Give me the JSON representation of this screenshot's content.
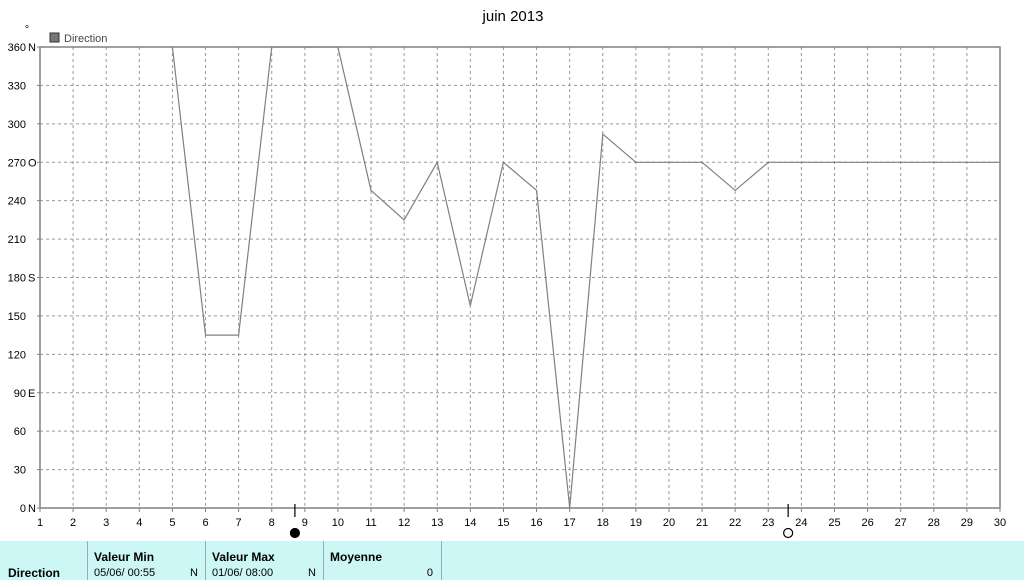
{
  "chart_data": {
    "type": "line",
    "title": "juin 2013",
    "y_unit_mark": "°",
    "legend": "Direction",
    "legend_color": "#777777",
    "line_color": "#808080",
    "x": [
      1,
      2,
      3,
      4,
      5,
      6,
      7,
      8,
      9,
      10,
      11,
      12,
      13,
      14,
      15,
      16,
      17,
      18,
      19,
      20,
      21,
      22,
      23,
      24,
      25,
      26,
      27,
      28,
      29,
      30
    ],
    "xlim": [
      1,
      30
    ],
    "ylim": [
      0,
      360
    ],
    "yticks": [
      {
        "v": 360,
        "label": "360",
        "dir": "N"
      },
      {
        "v": 330,
        "label": "330",
        "dir": ""
      },
      {
        "v": 300,
        "label": "300",
        "dir": ""
      },
      {
        "v": 270,
        "label": "270",
        "dir": "O"
      },
      {
        "v": 240,
        "label": "240",
        "dir": ""
      },
      {
        "v": 210,
        "label": "210",
        "dir": ""
      },
      {
        "v": 180,
        "label": "180",
        "dir": "S"
      },
      {
        "v": 150,
        "label": "150",
        "dir": ""
      },
      {
        "v": 120,
        "label": "120",
        "dir": ""
      },
      {
        "v": 90,
        "label": "90",
        "dir": "E"
      },
      {
        "v": 60,
        "label": "60",
        "dir": ""
      },
      {
        "v": 30,
        "label": "30",
        "dir": ""
      },
      {
        "v": 0,
        "label": "0",
        "dir": "N"
      }
    ],
    "series": [
      {
        "name": "Direction",
        "points": [
          [
            5,
            360
          ],
          [
            6,
            135
          ],
          [
            7,
            135
          ],
          [
            8,
            360
          ],
          [
            10,
            360
          ],
          [
            11,
            248
          ],
          [
            12,
            225
          ],
          [
            13,
            270
          ],
          [
            14,
            158
          ],
          [
            15,
            270
          ],
          [
            16,
            248
          ],
          [
            17,
            0
          ],
          [
            18,
            292
          ],
          [
            19,
            270
          ],
          [
            20,
            270
          ],
          [
            21,
            270
          ],
          [
            22,
            248
          ],
          [
            23,
            270
          ],
          [
            24,
            270
          ],
          [
            25,
            270
          ],
          [
            26,
            270
          ],
          [
            27,
            270
          ],
          [
            28,
            270
          ],
          [
            29,
            270
          ],
          [
            30,
            270
          ]
        ]
      }
    ],
    "moon_markers": [
      {
        "x": 8.7,
        "phase": "new"
      },
      {
        "x": 23.6,
        "phase": "full"
      }
    ],
    "grid": true
  },
  "footer": {
    "row_label": "Direction",
    "min_header": "Valeur Min",
    "min_value": "05/06/  00:55",
    "min_unit": "N",
    "max_header": "Valeur Max",
    "max_value": "01/06/  08:00",
    "max_unit": "N",
    "avg_header": "Moyenne",
    "avg_value": "0"
  }
}
